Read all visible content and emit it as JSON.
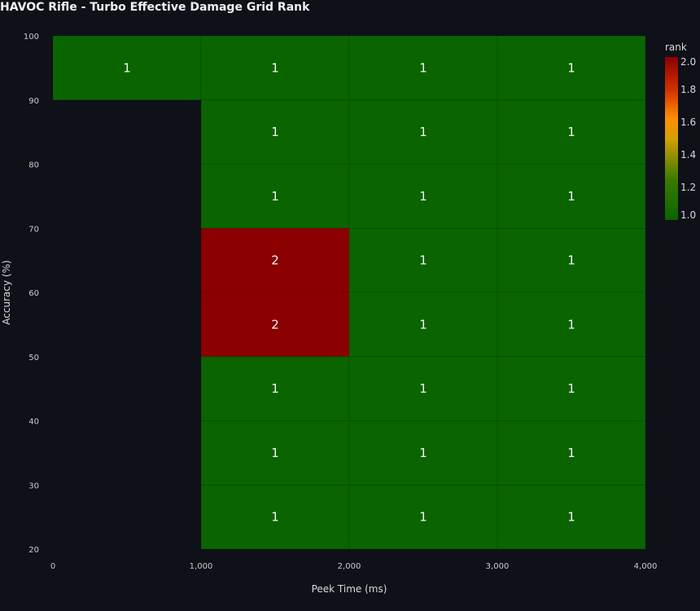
{
  "chart_data": {
    "type": "heatmap",
    "title": "HAVOC Rifle - Turbo Effective Damage Grid Rank",
    "xlabel": "Peek Time (ms)",
    "ylabel": "Accuracy (%)",
    "xlim": [
      0,
      4000
    ],
    "ylim": [
      20,
      100
    ],
    "x_ticks": [
      "0",
      "1,000",
      "2,000",
      "3,000",
      "4,000"
    ],
    "x_tick_values": [
      0,
      1000,
      2000,
      3000,
      4000
    ],
    "y_ticks": [
      "20",
      "30",
      "40",
      "50",
      "60",
      "70",
      "80",
      "90",
      "100"
    ],
    "y_tick_values": [
      20,
      30,
      40,
      50,
      60,
      70,
      80,
      90,
      100
    ],
    "cells": [
      {
        "x0": 0,
        "x1": 1000,
        "y0": 90,
        "y1": 100,
        "value": 1,
        "label": "1"
      },
      {
        "x0": 1000,
        "x1": 2000,
        "y0": 90,
        "y1": 100,
        "value": 1,
        "label": "1"
      },
      {
        "x0": 2000,
        "x1": 3000,
        "y0": 90,
        "y1": 100,
        "value": 1,
        "label": "1"
      },
      {
        "x0": 3000,
        "x1": 4000,
        "y0": 90,
        "y1": 100,
        "value": 1,
        "label": "1"
      },
      {
        "x0": 1000,
        "x1": 2000,
        "y0": 80,
        "y1": 90,
        "value": 1,
        "label": "1"
      },
      {
        "x0": 2000,
        "x1": 3000,
        "y0": 80,
        "y1": 90,
        "value": 1,
        "label": "1"
      },
      {
        "x0": 3000,
        "x1": 4000,
        "y0": 80,
        "y1": 90,
        "value": 1,
        "label": "1"
      },
      {
        "x0": 1000,
        "x1": 2000,
        "y0": 70,
        "y1": 80,
        "value": 1,
        "label": "1"
      },
      {
        "x0": 2000,
        "x1": 3000,
        "y0": 70,
        "y1": 80,
        "value": 1,
        "label": "1"
      },
      {
        "x0": 3000,
        "x1": 4000,
        "y0": 70,
        "y1": 80,
        "value": 1,
        "label": "1"
      },
      {
        "x0": 1000,
        "x1": 2000,
        "y0": 60,
        "y1": 70,
        "value": 2,
        "label": "2"
      },
      {
        "x0": 2000,
        "x1": 3000,
        "y0": 60,
        "y1": 70,
        "value": 1,
        "label": "1"
      },
      {
        "x0": 3000,
        "x1": 4000,
        "y0": 60,
        "y1": 70,
        "value": 1,
        "label": "1"
      },
      {
        "x0": 1000,
        "x1": 2000,
        "y0": 50,
        "y1": 60,
        "value": 2,
        "label": "2"
      },
      {
        "x0": 2000,
        "x1": 3000,
        "y0": 50,
        "y1": 60,
        "value": 1,
        "label": "1"
      },
      {
        "x0": 3000,
        "x1": 4000,
        "y0": 50,
        "y1": 60,
        "value": 1,
        "label": "1"
      },
      {
        "x0": 1000,
        "x1": 2000,
        "y0": 40,
        "y1": 50,
        "value": 1,
        "label": "1"
      },
      {
        "x0": 2000,
        "x1": 3000,
        "y0": 40,
        "y1": 50,
        "value": 1,
        "label": "1"
      },
      {
        "x0": 3000,
        "x1": 4000,
        "y0": 40,
        "y1": 50,
        "value": 1,
        "label": "1"
      },
      {
        "x0": 1000,
        "x1": 2000,
        "y0": 30,
        "y1": 40,
        "value": 1,
        "label": "1"
      },
      {
        "x0": 2000,
        "x1": 3000,
        "y0": 30,
        "y1": 40,
        "value": 1,
        "label": "1"
      },
      {
        "x0": 3000,
        "x1": 4000,
        "y0": 30,
        "y1": 40,
        "value": 1,
        "label": "1"
      },
      {
        "x0": 1000,
        "x1": 2000,
        "y0": 20,
        "y1": 30,
        "value": 1,
        "label": "1"
      },
      {
        "x0": 2000,
        "x1": 3000,
        "y0": 20,
        "y1": 30,
        "value": 1,
        "label": "1"
      },
      {
        "x0": 3000,
        "x1": 4000,
        "y0": 20,
        "y1": 30,
        "value": 1,
        "label": "1"
      }
    ],
    "colorbar": {
      "title": "rank",
      "range": [
        1.0,
        2.0
      ],
      "ticks": [
        "1.0",
        "1.2",
        "1.4",
        "1.6",
        "1.8",
        "2.0"
      ],
      "tick_values": [
        1.0,
        1.2,
        1.4,
        1.6,
        1.8,
        2.0
      ],
      "colorscale": [
        [
          0.0,
          "#0a6400"
        ],
        [
          0.25,
          "#3c7a00"
        ],
        [
          0.5,
          "#d4a000"
        ],
        [
          0.62,
          "#ff9000"
        ],
        [
          0.8,
          "#d03000"
        ],
        [
          1.0,
          "#8b0000"
        ]
      ]
    },
    "colors": {
      "background": "#0f1119",
      "low": "#0a6400",
      "high": "#8b0000"
    },
    "grid": false,
    "legend": "right"
  }
}
